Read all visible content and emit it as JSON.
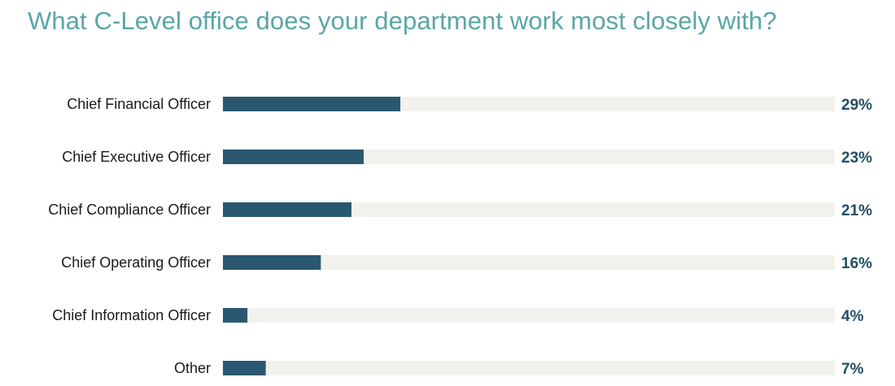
{
  "chart_data": {
    "type": "bar",
    "orientation": "horizontal",
    "title": "What C-Level office does your department work most closely with?",
    "categories": [
      "Chief Financial Officer",
      "Chief Executive Officer",
      "Chief Compliance Officer",
      "Chief Operating Officer",
      "Chief Information Officer",
      "Other"
    ],
    "values": [
      29,
      23,
      21,
      16,
      4,
      7
    ],
    "value_labels": [
      "29%",
      "23%",
      "21%",
      "16%",
      "4%",
      "7%"
    ],
    "xlim": [
      0,
      100
    ],
    "grid": false,
    "legend": "none",
    "colors": {
      "bar": "#2a5870",
      "track": "#f2f1ed",
      "title": "#5aa6a6",
      "value_text": "#244f66"
    }
  }
}
